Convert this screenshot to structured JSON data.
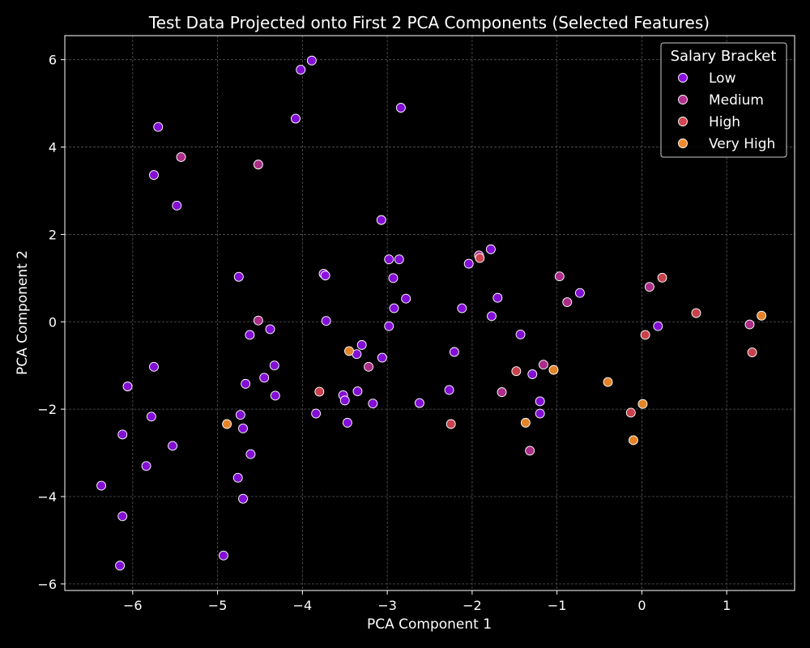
{
  "chart_data": {
    "type": "scatter",
    "title": "Test Data Projected onto First 2 PCA Components (Selected Features)",
    "xlabel": "PCA Component 1",
    "ylabel": "PCA Component 2",
    "xlim": [
      -6.8,
      1.8
    ],
    "ylim": [
      -6.15,
      6.55
    ],
    "xticks": [
      -6,
      -5,
      -4,
      -3,
      -2,
      -1,
      0,
      1
    ],
    "yticks": [
      -6,
      -4,
      -2,
      0,
      2,
      4,
      6
    ],
    "grid": true,
    "legend": {
      "title": "Salary Bracket",
      "placement": "top-right"
    },
    "series": [
      {
        "name": "Low",
        "color": "#8a10e0",
        "points": [
          [
            -6.37,
            -3.75
          ],
          [
            -6.15,
            -5.58
          ],
          [
            -6.12,
            -2.58
          ],
          [
            -6.12,
            -4.45
          ],
          [
            -6.06,
            -1.48
          ],
          [
            -5.84,
            -3.3
          ],
          [
            -5.78,
            -2.17
          ],
          [
            -5.75,
            -1.03
          ],
          [
            -5.75,
            3.36
          ],
          [
            -5.7,
            4.46
          ],
          [
            -5.53,
            -2.84
          ],
          [
            -5.48,
            2.66
          ],
          [
            -4.93,
            -5.35
          ],
          [
            -4.76,
            -3.57
          ],
          [
            -4.75,
            1.03
          ],
          [
            -4.73,
            -2.13
          ],
          [
            -4.7,
            -4.05
          ],
          [
            -4.7,
            -2.44
          ],
          [
            -4.67,
            -1.42
          ],
          [
            -4.62,
            -0.3
          ],
          [
            -4.61,
            -3.03
          ],
          [
            -4.45,
            -1.28
          ],
          [
            -4.38,
            -0.17
          ],
          [
            -4.33,
            -1.0
          ],
          [
            -4.32,
            -1.69
          ],
          [
            -4.08,
            4.65
          ],
          [
            -4.02,
            5.77
          ],
          [
            -3.89,
            5.98
          ],
          [
            -3.84,
            -2.1
          ],
          [
            -3.75,
            1.1
          ],
          [
            -3.73,
            1.06
          ],
          [
            -3.72,
            0.02
          ],
          [
            -3.52,
            -1.68
          ],
          [
            -3.5,
            -1.8
          ],
          [
            -3.47,
            -2.31
          ],
          [
            -3.36,
            -0.74
          ],
          [
            -3.35,
            -1.59
          ],
          [
            -3.3,
            -0.53
          ],
          [
            -3.17,
            -1.87
          ],
          [
            -3.07,
            2.33
          ],
          [
            -3.06,
            -0.82
          ],
          [
            -2.98,
            -0.1
          ],
          [
            -2.98,
            1.43
          ],
          [
            -2.93,
            1.0
          ],
          [
            -2.92,
            0.31
          ],
          [
            -2.86,
            1.43
          ],
          [
            -2.84,
            4.9
          ],
          [
            -2.78,
            0.53
          ],
          [
            -2.62,
            -1.86
          ],
          [
            -2.27,
            -1.56
          ],
          [
            -2.21,
            -0.69
          ],
          [
            -2.12,
            0.31
          ],
          [
            -2.04,
            1.33
          ],
          [
            -1.78,
            1.66
          ],
          [
            -1.77,
            0.13
          ],
          [
            -1.7,
            0.55
          ],
          [
            -1.43,
            -0.29
          ],
          [
            -1.29,
            -1.2
          ],
          [
            -1.2,
            -1.82
          ],
          [
            -1.2,
            -2.1
          ],
          [
            -0.73,
            0.66
          ],
          [
            0.19,
            -0.1
          ]
        ]
      },
      {
        "name": "Medium",
        "color": "#b42f8f",
        "points": [
          [
            -5.43,
            3.77
          ],
          [
            -4.52,
            3.6
          ],
          [
            -4.52,
            0.03
          ],
          [
            -3.22,
            -1.03
          ],
          [
            -1.92,
            1.52
          ],
          [
            -1.65,
            -1.61
          ],
          [
            -1.32,
            -2.95
          ],
          [
            -1.16,
            -0.98
          ],
          [
            -0.97,
            1.04
          ],
          [
            -0.88,
            0.45
          ],
          [
            0.09,
            0.8
          ],
          [
            1.27,
            -0.06
          ]
        ]
      },
      {
        "name": "High",
        "color": "#d2464f",
        "points": [
          [
            -3.8,
            -1.6
          ],
          [
            -2.25,
            -2.34
          ],
          [
            -1.91,
            1.46
          ],
          [
            -1.48,
            -1.13
          ],
          [
            -0.13,
            -2.08
          ],
          [
            0.04,
            -0.3
          ],
          [
            0.24,
            1.01
          ],
          [
            0.64,
            0.2
          ],
          [
            1.3,
            -0.7
          ]
        ]
      },
      {
        "name": "Very High",
        "color": "#f08a2a",
        "points": [
          [
            -4.89,
            -2.34
          ],
          [
            -3.45,
            -0.67
          ],
          [
            -1.37,
            -2.31
          ],
          [
            -1.04,
            -1.1
          ],
          [
            -0.4,
            -1.38
          ],
          [
            -0.1,
            -2.71
          ],
          [
            0.01,
            -1.88
          ],
          [
            1.41,
            0.14
          ]
        ]
      }
    ]
  }
}
